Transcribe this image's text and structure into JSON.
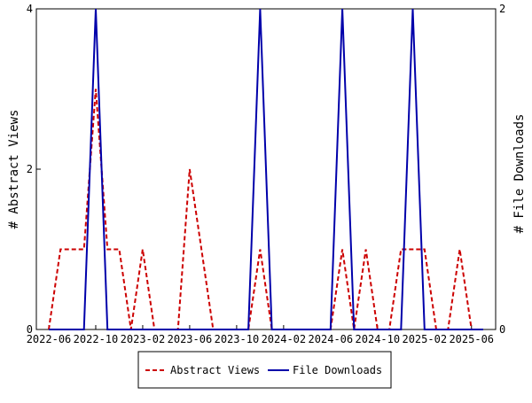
{
  "chart_data": {
    "type": "line",
    "x_dates": [
      "2022-06",
      "2022-07",
      "2022-08",
      "2022-09",
      "2022-10",
      "2022-11",
      "2022-12",
      "2023-01",
      "2023-02",
      "2023-03",
      "2023-04",
      "2023-05",
      "2023-06",
      "2023-07",
      "2023-08",
      "2023-09",
      "2023-10",
      "2023-11",
      "2023-12",
      "2024-01",
      "2024-02",
      "2024-03",
      "2024-04",
      "2024-05",
      "2024-06",
      "2024-07",
      "2024-08",
      "2024-09",
      "2024-10",
      "2024-11",
      "2024-12",
      "2025-01",
      "2025-02",
      "2025-03",
      "2025-04",
      "2025-05",
      "2025-06",
      "2025-07"
    ],
    "x_tick_labels": [
      "2022-06",
      "2022-10",
      "2023-02",
      "2023-06",
      "2023-10",
      "2024-02",
      "2024-06",
      "2024-10",
      "2025-02",
      "2025-06"
    ],
    "y_left": {
      "label": "# Abstract Views",
      "ylim": [
        0,
        4
      ],
      "ticks": [
        "0",
        "2",
        "4"
      ]
    },
    "y_right": {
      "label": "# File Downloads",
      "ylim": [
        0,
        2
      ],
      "ticks": [
        "0",
        "2"
      ]
    },
    "series": [
      {
        "name": "Abstract Views",
        "axis": "left",
        "color": "#cc0000",
        "style": "dashed",
        "values": [
          0,
          1,
          1,
          1,
          3,
          1,
          1,
          0,
          1,
          0,
          0,
          0,
          2,
          1,
          0,
          0,
          0,
          0,
          1,
          0,
          0,
          0,
          0,
          0,
          0,
          1,
          0,
          1,
          0,
          0,
          1,
          1,
          1,
          0,
          0,
          1,
          0,
          0
        ]
      },
      {
        "name": "File Downloads",
        "axis": "right",
        "color": "#0000aa",
        "style": "solid",
        "values": [
          0,
          0,
          0,
          0,
          2,
          0,
          0,
          0,
          0,
          0,
          0,
          0,
          0,
          0,
          0,
          0,
          0,
          0,
          2,
          0,
          0,
          0,
          0,
          0,
          0,
          2,
          0,
          0,
          0,
          0,
          0,
          2,
          0,
          0,
          0,
          0,
          0,
          0
        ]
      }
    ],
    "grid": false,
    "legend_placement": "bottom-center"
  }
}
